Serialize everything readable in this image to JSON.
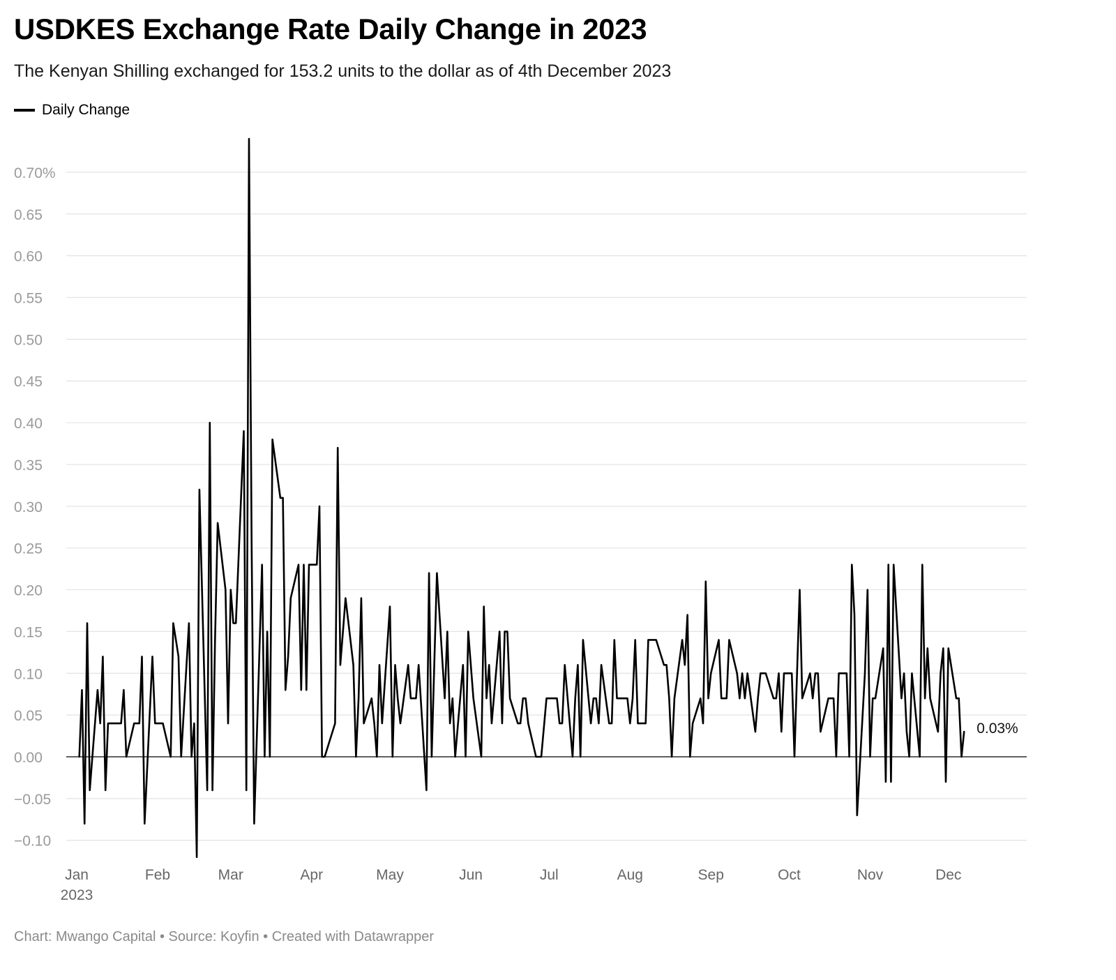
{
  "header": {
    "title": "USDKES Exchange Rate Daily Change in 2023",
    "subtitle": "The Kenyan Shilling exchanged for 153.2 units to the dollar as of 4th December 2023"
  },
  "legend": {
    "label": "Daily Change"
  },
  "footer": {
    "text": "Chart: Mwango Capital • Source: Koyfin • Created with Datawrapper"
  },
  "chart_data": {
    "type": "line",
    "title": "USDKES Exchange Rate Daily Change in 2023",
    "subtitle": "The Kenyan Shilling exchanged for 153.2 units to the dollar as of 4th December 2023",
    "xlabel": "",
    "ylabel": "",
    "ylim": [
      -0.12,
      0.75
    ],
    "yticks": [
      -0.1,
      -0.05,
      0.0,
      0.05,
      0.1,
      0.15,
      0.2,
      0.25,
      0.3,
      0.35,
      0.4,
      0.45,
      0.5,
      0.55,
      0.6,
      0.65,
      0.7
    ],
    "ytick_labels": [
      "−0.10",
      "−0.05",
      "0.00",
      "0.05",
      "0.10",
      "0.15",
      "0.20",
      "0.25",
      "0.30",
      "0.35",
      "0.40",
      "0.45",
      "0.50",
      "0.55",
      "0.60",
      "0.65",
      "0.70%"
    ],
    "xticks": [
      "2023-01-01",
      "2023-02-01",
      "2023-03-01",
      "2023-04-01",
      "2023-05-01",
      "2023-06-01",
      "2023-07-01",
      "2023-08-01",
      "2023-09-01",
      "2023-10-01",
      "2023-11-01",
      "2023-12-01"
    ],
    "xtick_labels": [
      "Jan",
      "Feb",
      "Mar",
      "Apr",
      "May",
      "Jun",
      "Jul",
      "Aug",
      "Sep",
      "Oct",
      "Nov",
      "Dec"
    ],
    "xtick_sublabel": "2023",
    "grid": true,
    "legend_position": "top-left",
    "end_label": "0.03%",
    "series": [
      {
        "name": "Daily Change",
        "color": "#000000",
        "points": [
          [
            "2023-01-02",
            0.0
          ],
          [
            "2023-01-03",
            0.08
          ],
          [
            "2023-01-04",
            -0.08
          ],
          [
            "2023-01-05",
            0.16
          ],
          [
            "2023-01-06",
            -0.04
          ],
          [
            "2023-01-09",
            0.08
          ],
          [
            "2023-01-10",
            0.04
          ],
          [
            "2023-01-11",
            0.12
          ],
          [
            "2023-01-12",
            -0.04
          ],
          [
            "2023-01-13",
            0.04
          ],
          [
            "2023-01-16",
            0.04
          ],
          [
            "2023-01-17",
            0.04
          ],
          [
            "2023-01-18",
            0.04
          ],
          [
            "2023-01-19",
            0.08
          ],
          [
            "2023-01-20",
            0.0
          ],
          [
            "2023-01-23",
            0.04
          ],
          [
            "2023-01-24",
            0.04
          ],
          [
            "2023-01-25",
            0.04
          ],
          [
            "2023-01-26",
            0.12
          ],
          [
            "2023-01-27",
            -0.08
          ],
          [
            "2023-01-30",
            0.12
          ],
          [
            "2023-01-31",
            0.04
          ],
          [
            "2023-02-01",
            0.04
          ],
          [
            "2023-02-02",
            0.04
          ],
          [
            "2023-02-03",
            0.04
          ],
          [
            "2023-02-06",
            0.0
          ],
          [
            "2023-02-07",
            0.16
          ],
          [
            "2023-02-08",
            0.14
          ],
          [
            "2023-02-09",
            0.12
          ],
          [
            "2023-02-10",
            0.0
          ],
          [
            "2023-02-13",
            0.16
          ],
          [
            "2023-02-14",
            0.0
          ],
          [
            "2023-02-15",
            0.04
          ],
          [
            "2023-02-16",
            -0.12
          ],
          [
            "2023-02-17",
            0.32
          ],
          [
            "2023-02-20",
            -0.04
          ],
          [
            "2023-02-21",
            0.4
          ],
          [
            "2023-02-22",
            -0.04
          ],
          [
            "2023-02-23",
            0.14
          ],
          [
            "2023-02-24",
            0.28
          ],
          [
            "2023-02-27",
            0.2
          ],
          [
            "2023-02-28",
            0.04
          ],
          [
            "2023-03-01",
            0.2
          ],
          [
            "2023-03-02",
            0.16
          ],
          [
            "2023-03-03",
            0.16
          ],
          [
            "2023-03-06",
            0.39
          ],
          [
            "2023-03-07",
            -0.04
          ],
          [
            "2023-03-08",
            0.74
          ],
          [
            "2023-03-09",
            0.26
          ],
          [
            "2023-03-10",
            -0.08
          ],
          [
            "2023-03-13",
            0.23
          ],
          [
            "2023-03-14",
            0.0
          ],
          [
            "2023-03-15",
            0.15
          ],
          [
            "2023-03-16",
            0.0
          ],
          [
            "2023-03-17",
            0.38
          ],
          [
            "2023-03-20",
            0.31
          ],
          [
            "2023-03-21",
            0.31
          ],
          [
            "2023-03-22",
            0.08
          ],
          [
            "2023-03-23",
            0.12
          ],
          [
            "2023-03-24",
            0.19
          ],
          [
            "2023-03-27",
            0.23
          ],
          [
            "2023-03-28",
            0.08
          ],
          [
            "2023-03-29",
            0.23
          ],
          [
            "2023-03-30",
            0.08
          ],
          [
            "2023-03-31",
            0.23
          ],
          [
            "2023-04-03",
            0.23
          ],
          [
            "2023-04-04",
            0.3
          ],
          [
            "2023-04-05",
            0.0
          ],
          [
            "2023-04-06",
            0.0
          ],
          [
            "2023-04-10",
            0.04
          ],
          [
            "2023-04-11",
            0.37
          ],
          [
            "2023-04-12",
            0.11
          ],
          [
            "2023-04-13",
            0.15
          ],
          [
            "2023-04-14",
            0.19
          ],
          [
            "2023-04-17",
            0.11
          ],
          [
            "2023-04-18",
            0.0
          ],
          [
            "2023-04-19",
            0.07
          ],
          [
            "2023-04-20",
            0.19
          ],
          [
            "2023-04-21",
            0.04
          ],
          [
            "2023-04-24",
            0.07
          ],
          [
            "2023-04-25",
            0.04
          ],
          [
            "2023-04-26",
            0.0
          ],
          [
            "2023-04-27",
            0.11
          ],
          [
            "2023-04-28",
            0.04
          ],
          [
            "2023-05-01",
            0.18
          ],
          [
            "2023-05-02",
            0.0
          ],
          [
            "2023-05-03",
            0.11
          ],
          [
            "2023-05-04",
            0.07
          ],
          [
            "2023-05-05",
            0.04
          ],
          [
            "2023-05-08",
            0.11
          ],
          [
            "2023-05-09",
            0.07
          ],
          [
            "2023-05-10",
            0.07
          ],
          [
            "2023-05-11",
            0.07
          ],
          [
            "2023-05-12",
            0.11
          ],
          [
            "2023-05-15",
            -0.04
          ],
          [
            "2023-05-16",
            0.22
          ],
          [
            "2023-05-17",
            0.0
          ],
          [
            "2023-05-18",
            0.11
          ],
          [
            "2023-05-19",
            0.22
          ],
          [
            "2023-05-22",
            0.07
          ],
          [
            "2023-05-23",
            0.15
          ],
          [
            "2023-05-24",
            0.04
          ],
          [
            "2023-05-25",
            0.07
          ],
          [
            "2023-05-26",
            0.0
          ],
          [
            "2023-05-29",
            0.11
          ],
          [
            "2023-05-30",
            0.0
          ],
          [
            "2023-05-31",
            0.15
          ],
          [
            "2023-06-01",
            0.11
          ],
          [
            "2023-06-02",
            0.07
          ],
          [
            "2023-06-05",
            0.0
          ],
          [
            "2023-06-06",
            0.18
          ],
          [
            "2023-06-07",
            0.07
          ],
          [
            "2023-06-08",
            0.11
          ],
          [
            "2023-06-09",
            0.04
          ],
          [
            "2023-06-12",
            0.15
          ],
          [
            "2023-06-13",
            0.04
          ],
          [
            "2023-06-14",
            0.15
          ],
          [
            "2023-06-15",
            0.15
          ],
          [
            "2023-06-16",
            0.07
          ],
          [
            "2023-06-19",
            0.04
          ],
          [
            "2023-06-20",
            0.04
          ],
          [
            "2023-06-21",
            0.07
          ],
          [
            "2023-06-22",
            0.07
          ],
          [
            "2023-06-23",
            0.04
          ],
          [
            "2023-06-26",
            0.0
          ],
          [
            "2023-06-27",
            0.0
          ],
          [
            "2023-06-28",
            0.0
          ],
          [
            "2023-06-30",
            0.07
          ],
          [
            "2023-07-03",
            0.07
          ],
          [
            "2023-07-04",
            0.07
          ],
          [
            "2023-07-05",
            0.04
          ],
          [
            "2023-07-06",
            0.04
          ],
          [
            "2023-07-07",
            0.11
          ],
          [
            "2023-07-10",
            0.0
          ],
          [
            "2023-07-11",
            0.07
          ],
          [
            "2023-07-12",
            0.11
          ],
          [
            "2023-07-13",
            0.0
          ],
          [
            "2023-07-14",
            0.14
          ],
          [
            "2023-07-17",
            0.04
          ],
          [
            "2023-07-18",
            0.07
          ],
          [
            "2023-07-19",
            0.07
          ],
          [
            "2023-07-20",
            0.04
          ],
          [
            "2023-07-21",
            0.11
          ],
          [
            "2023-07-24",
            0.04
          ],
          [
            "2023-07-25",
            0.04
          ],
          [
            "2023-07-26",
            0.14
          ],
          [
            "2023-07-27",
            0.07
          ],
          [
            "2023-07-28",
            0.07
          ],
          [
            "2023-07-31",
            0.07
          ],
          [
            "2023-08-01",
            0.04
          ],
          [
            "2023-08-02",
            0.07
          ],
          [
            "2023-08-03",
            0.14
          ],
          [
            "2023-08-04",
            0.04
          ],
          [
            "2023-08-07",
            0.04
          ],
          [
            "2023-08-08",
            0.14
          ],
          [
            "2023-08-09",
            0.14
          ],
          [
            "2023-08-10",
            0.14
          ],
          [
            "2023-08-11",
            0.14
          ],
          [
            "2023-08-14",
            0.11
          ],
          [
            "2023-08-15",
            0.11
          ],
          [
            "2023-08-16",
            0.07
          ],
          [
            "2023-08-17",
            0.0
          ],
          [
            "2023-08-18",
            0.07
          ],
          [
            "2023-08-21",
            0.14
          ],
          [
            "2023-08-22",
            0.11
          ],
          [
            "2023-08-23",
            0.17
          ],
          [
            "2023-08-24",
            0.0
          ],
          [
            "2023-08-25",
            0.04
          ],
          [
            "2023-08-28",
            0.07
          ],
          [
            "2023-08-29",
            0.04
          ],
          [
            "2023-08-30",
            0.21
          ],
          [
            "2023-08-31",
            0.07
          ],
          [
            "2023-09-01",
            0.1
          ],
          [
            "2023-09-04",
            0.14
          ],
          [
            "2023-09-05",
            0.07
          ],
          [
            "2023-09-06",
            0.07
          ],
          [
            "2023-09-07",
            0.07
          ],
          [
            "2023-09-08",
            0.14
          ],
          [
            "2023-09-11",
            0.1
          ],
          [
            "2023-09-12",
            0.07
          ],
          [
            "2023-09-13",
            0.1
          ],
          [
            "2023-09-14",
            0.07
          ],
          [
            "2023-09-15",
            0.1
          ],
          [
            "2023-09-18",
            0.03
          ],
          [
            "2023-09-19",
            0.07
          ],
          [
            "2023-09-20",
            0.1
          ],
          [
            "2023-09-21",
            0.1
          ],
          [
            "2023-09-22",
            0.1
          ],
          [
            "2023-09-25",
            0.07
          ],
          [
            "2023-09-26",
            0.07
          ],
          [
            "2023-09-27",
            0.1
          ],
          [
            "2023-09-28",
            0.03
          ],
          [
            "2023-09-29",
            0.1
          ],
          [
            "2023-10-02",
            0.1
          ],
          [
            "2023-10-03",
            0.0
          ],
          [
            "2023-10-04",
            0.1
          ],
          [
            "2023-10-05",
            0.2
          ],
          [
            "2023-10-06",
            0.07
          ],
          [
            "2023-10-09",
            0.1
          ],
          [
            "2023-10-10",
            0.07
          ],
          [
            "2023-10-11",
            0.1
          ],
          [
            "2023-10-12",
            0.1
          ],
          [
            "2023-10-13",
            0.03
          ],
          [
            "2023-10-16",
            0.07
          ],
          [
            "2023-10-17",
            0.07
          ],
          [
            "2023-10-18",
            0.07
          ],
          [
            "2023-10-19",
            0.0
          ],
          [
            "2023-10-20",
            0.1
          ],
          [
            "2023-10-23",
            0.1
          ],
          [
            "2023-10-24",
            0.0
          ],
          [
            "2023-10-25",
            0.23
          ],
          [
            "2023-10-26",
            0.17
          ],
          [
            "2023-10-27",
            -0.07
          ],
          [
            "2023-10-30",
            0.1
          ],
          [
            "2023-10-31",
            0.2
          ],
          [
            "2023-11-01",
            0.0
          ],
          [
            "2023-11-02",
            0.07
          ],
          [
            "2023-11-03",
            0.07
          ],
          [
            "2023-11-06",
            0.13
          ],
          [
            "2023-11-07",
            -0.03
          ],
          [
            "2023-11-08",
            0.23
          ],
          [
            "2023-11-09",
            -0.03
          ],
          [
            "2023-11-10",
            0.23
          ],
          [
            "2023-11-13",
            0.07
          ],
          [
            "2023-11-14",
            0.1
          ],
          [
            "2023-11-15",
            0.03
          ],
          [
            "2023-11-16",
            0.0
          ],
          [
            "2023-11-17",
            0.1
          ],
          [
            "2023-11-20",
            0.0
          ],
          [
            "2023-11-21",
            0.23
          ],
          [
            "2023-11-22",
            0.07
          ],
          [
            "2023-11-23",
            0.13
          ],
          [
            "2023-11-24",
            0.07
          ],
          [
            "2023-11-27",
            0.03
          ],
          [
            "2023-11-28",
            0.1
          ],
          [
            "2023-11-29",
            0.13
          ],
          [
            "2023-11-30",
            -0.03
          ],
          [
            "2023-12-01",
            0.13
          ],
          [
            "2023-12-04",
            0.07
          ],
          [
            "2023-12-05",
            0.07
          ],
          [
            "2023-12-06",
            0.0
          ],
          [
            "2023-12-07",
            0.03
          ]
        ]
      }
    ]
  }
}
